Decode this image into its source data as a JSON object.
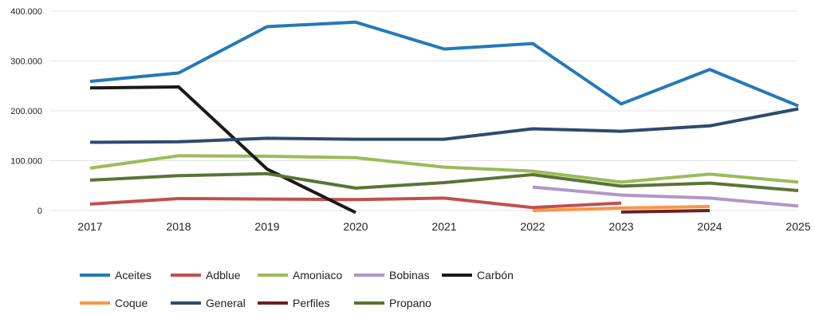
{
  "chart_data": {
    "type": "line",
    "title": "",
    "xlabel": "",
    "ylabel": "",
    "categories": [
      "2017",
      "2018",
      "2019",
      "2020",
      "2021",
      "2022",
      "2023",
      "2024",
      "2025"
    ],
    "ylim": [
      0,
      400000
    ],
    "yticks": [
      0,
      100000,
      200000,
      300000,
      400000
    ],
    "ytick_labels": [
      "0",
      "100.000",
      "200.000",
      "300.000",
      "400.000"
    ],
    "grid": true,
    "legend_position": "bottom-left",
    "series": [
      {
        "name": "Aceites",
        "color": "#2479b8",
        "values": [
          259000,
          276000,
          369000,
          378000,
          324000,
          335000,
          214000,
          283000,
          210000
        ]
      },
      {
        "name": "Adblue",
        "color": "#c0504d",
        "values": [
          13000,
          24000,
          23000,
          22000,
          25000,
          6000,
          15000,
          null,
          null
        ]
      },
      {
        "name": "Amoniaco",
        "color": "#9bbb59",
        "values": [
          85000,
          110000,
          109000,
          106000,
          87000,
          79000,
          57000,
          73000,
          57000
        ]
      },
      {
        "name": "Bobinas",
        "color": "#b196c8",
        "values": [
          null,
          null,
          null,
          null,
          null,
          47000,
          31000,
          25000,
          9000
        ]
      },
      {
        "name": "Carbón",
        "color": "#1a1a1a",
        "values": [
          246000,
          248000,
          83000,
          -4000,
          null,
          null,
          null,
          null,
          null
        ]
      },
      {
        "name": "Coque",
        "color": "#f79646",
        "values": [
          null,
          null,
          null,
          null,
          null,
          0,
          5000,
          8000,
          null
        ]
      },
      {
        "name": "General",
        "color": "#2e4a6e",
        "values": [
          137000,
          138000,
          145000,
          143000,
          143000,
          164000,
          159000,
          170000,
          204000
        ]
      },
      {
        "name": "Perfiles",
        "color": "#6d1f24",
        "values": [
          null,
          null,
          null,
          null,
          null,
          null,
          -3000,
          0,
          null
        ]
      },
      {
        "name": "Propano",
        "color": "#5a7434",
        "values": [
          61000,
          70000,
          74000,
          45000,
          56000,
          72000,
          49000,
          55000,
          40000
        ]
      }
    ]
  }
}
